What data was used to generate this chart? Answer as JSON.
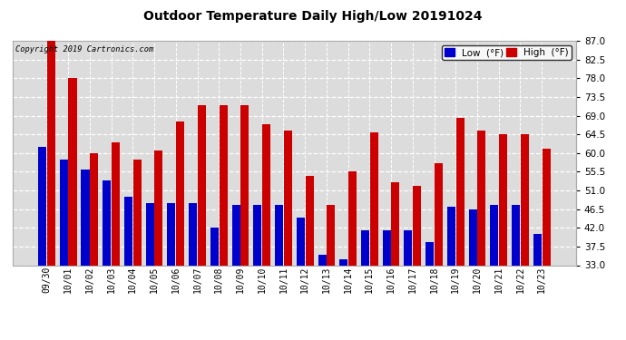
{
  "title": "Outdoor Temperature Daily High/Low 20191024",
  "copyright": "Copyright 2019 Cartronics.com",
  "legend_low": "Low  (°F)",
  "legend_high": "High  (°F)",
  "low_color": "#0000cc",
  "high_color": "#cc0000",
  "background_color": "#ffffff",
  "plot_bg_color": "#dcdcdc",
  "ylim": [
    33.0,
    87.0
  ],
  "yticks": [
    33.0,
    37.5,
    42.0,
    46.5,
    51.0,
    55.5,
    60.0,
    64.5,
    69.0,
    73.5,
    78.0,
    82.5,
    87.0
  ],
  "dates": [
    "09/30",
    "10/01",
    "10/02",
    "10/03",
    "10/04",
    "10/05",
    "10/06",
    "10/07",
    "10/08",
    "10/09",
    "10/10",
    "10/11",
    "10/12",
    "10/13",
    "10/14",
    "10/15",
    "10/16",
    "10/17",
    "10/18",
    "10/19",
    "10/20",
    "10/21",
    "10/22",
    "10/23"
  ],
  "highs": [
    87.5,
    78.0,
    60.0,
    62.5,
    58.5,
    60.5,
    67.5,
    71.5,
    71.5,
    71.5,
    67.0,
    65.5,
    54.5,
    47.5,
    55.5,
    65.0,
    53.0,
    52.0,
    57.5,
    68.5,
    65.5,
    64.5,
    64.5,
    61.0
  ],
  "lows": [
    61.5,
    58.5,
    56.0,
    53.5,
    49.5,
    48.0,
    48.0,
    48.0,
    42.0,
    47.5,
    47.5,
    47.5,
    44.5,
    35.5,
    34.5,
    41.5,
    41.5,
    41.5,
    38.5,
    47.0,
    46.5,
    47.5,
    47.5,
    40.5
  ],
  "bar_width": 0.38,
  "bar_gap": 0.03,
  "figsize": [
    6.9,
    3.75
  ],
  "dpi": 100
}
